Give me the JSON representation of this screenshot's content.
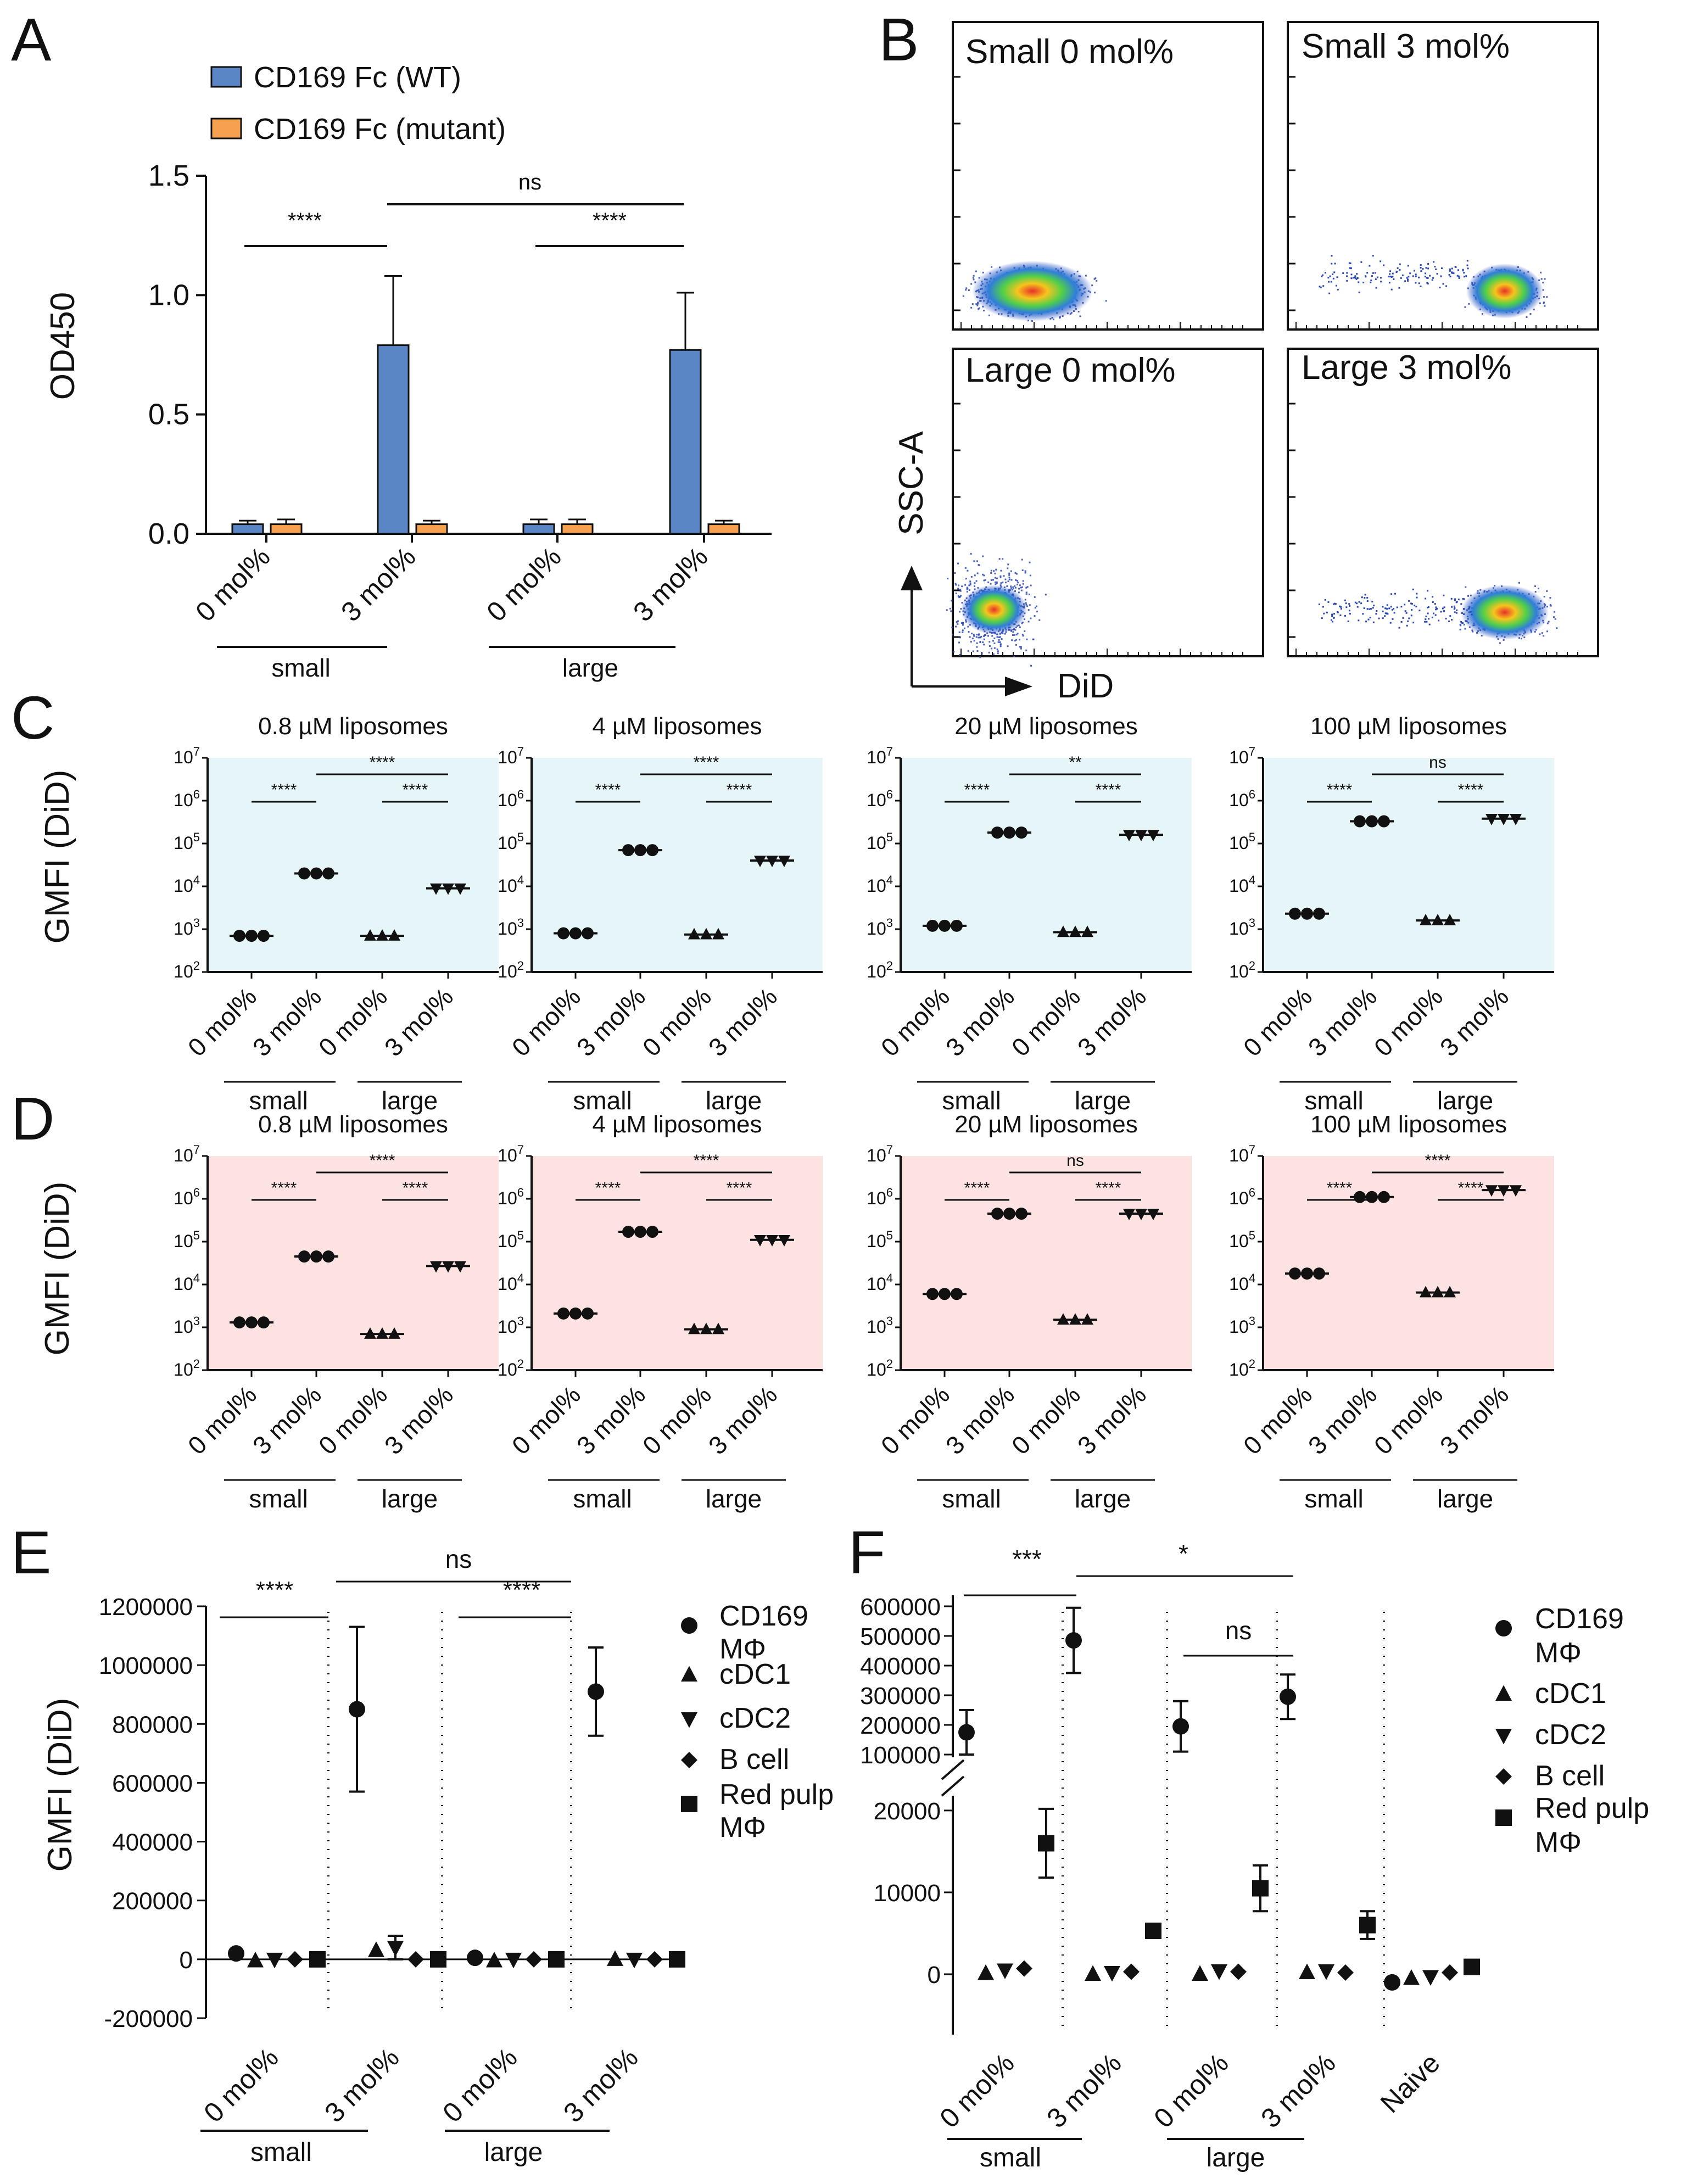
{
  "panels": {
    "A": "A",
    "B": "B",
    "C": "C",
    "D": "D",
    "E": "E",
    "F": "F"
  },
  "colors": {
    "wt": "#5b86c6",
    "mutant": "#f5a150",
    "cyan_bg": "#e6f6f8",
    "pink_bg": "#fde2e2"
  },
  "chart_data": [
    {
      "id": "A",
      "type": "bar",
      "ylabel": "OD450",
      "ylim": [
        0,
        1.5
      ],
      "yticks": [
        "0.0",
        "0.5",
        "1.0",
        "1.5"
      ],
      "categories": [
        "0 mol%",
        "3 mol%",
        "0 mol%",
        "3 mol%"
      ],
      "groups": [
        "small",
        "large"
      ],
      "series": [
        {
          "name": "CD169 Fc (WT)",
          "color": "#5b86c6",
          "values": [
            0.04,
            0.79,
            0.04,
            0.77
          ],
          "errors": [
            0.015,
            0.29,
            0.02,
            0.24
          ]
        },
        {
          "name": "CD169 Fc (mutant)",
          "color": "#f5a150",
          "values": [
            0.04,
            0.04,
            0.04,
            0.04
          ],
          "errors": [
            0.02,
            0.015,
            0.02,
            0.015
          ]
        }
      ],
      "comparisons": [
        {
          "label": "****"
        },
        {
          "label": "ns"
        },
        {
          "label": "****"
        }
      ]
    },
    {
      "id": "B",
      "type": "scatter",
      "xlabel": "DiD",
      "ylabel": "SSC-A",
      "plots": [
        "Small 0 mol%",
        "Small 3 mol%",
        "Large 0 mol%",
        "Large 3 mol%"
      ]
    },
    {
      "id": "C",
      "type": "scatter",
      "ylabel": "GMFI (DiD)",
      "yscale": "log",
      "ylim": [
        100,
        10000000
      ],
      "ytick_base": "10",
      "ytick_exps": [
        "2",
        "3",
        "4",
        "5",
        "6",
        "7"
      ],
      "categories": [
        "0 mol%",
        "3 mol%",
        "0 mol%",
        "3 mol%"
      ],
      "groups": [
        "small",
        "large"
      ],
      "subplots": [
        {
          "title": "0.8 µM liposomes",
          "values": [
            700,
            20000,
            700,
            9000
          ],
          "sig": [
            "****",
            "****",
            "****"
          ]
        },
        {
          "title": "4 µM liposomes",
          "values": [
            800,
            70000,
            750,
            40000
          ],
          "sig": [
            "****",
            "****",
            "****"
          ]
        },
        {
          "title": "20 µM liposomes",
          "values": [
            1200,
            180000,
            850,
            160000
          ],
          "sig": [
            "****",
            "**",
            "****"
          ]
        },
        {
          "title": "100 µM liposomes",
          "values": [
            2300,
            330000,
            1600,
            380000
          ],
          "sig": [
            "****",
            "ns",
            "****"
          ]
        }
      ]
    },
    {
      "id": "D",
      "type": "scatter",
      "ylabel": "GMFI (DiD)",
      "yscale": "log",
      "ylim": [
        100,
        10000000
      ],
      "ytick_base": "10",
      "ytick_exps": [
        "2",
        "3",
        "4",
        "5",
        "6",
        "7"
      ],
      "categories": [
        "0 mol%",
        "3 mol%",
        "0 mol%",
        "3 mol%"
      ],
      "groups": [
        "small",
        "large"
      ],
      "subplots": [
        {
          "title": "0.8 µM liposomes",
          "values": [
            1300,
            45000,
            700,
            27000
          ],
          "sig": [
            "****",
            "****",
            "****"
          ]
        },
        {
          "title": "4 µM liposomes",
          "values": [
            2100,
            170000,
            900,
            110000
          ],
          "sig": [
            "****",
            "****",
            "****"
          ]
        },
        {
          "title": "20 µM liposomes",
          "values": [
            6000,
            450000,
            1500,
            450000
          ],
          "sig": [
            "****",
            "ns",
            "****"
          ]
        },
        {
          "title": "100 µM liposomes",
          "values": [
            18000,
            1100000,
            6500,
            1600000
          ],
          "sig": [
            "****",
            "****",
            "****"
          ]
        }
      ]
    },
    {
      "id": "E",
      "type": "scatter",
      "ylabel": "GMFI (DiD)",
      "ylim": [
        -200000,
        1200000
      ],
      "yticks": [
        "-200000",
        "0",
        "200000",
        "400000",
        "600000",
        "800000",
        "1000000",
        "1200000"
      ],
      "categories": [
        "0 mol%",
        "3 mol%",
        "0 mol%",
        "3 mol%"
      ],
      "groups": [
        "small",
        "large"
      ],
      "legend": [
        "CD169 MΦ",
        "cDC1",
        "cDC2",
        "B cell",
        "Red pulp MΦ"
      ],
      "series": [
        {
          "name": "CD169 MΦ",
          "values": [
            20000,
            850000,
            5000,
            910000
          ],
          "errors": [
            0,
            280000,
            0,
            150000
          ]
        },
        {
          "name": "cDC1",
          "values": [
            -5000,
            30000,
            -5000,
            0
          ],
          "errors": [
            0,
            0,
            0,
            0
          ]
        },
        {
          "name": "cDC2",
          "values": [
            0,
            40000,
            0,
            0
          ],
          "errors": [
            0,
            40000,
            0,
            0
          ]
        },
        {
          "name": "B cell",
          "values": [
            0,
            0,
            0,
            0
          ],
          "errors": [
            0,
            0,
            0,
            0
          ]
        },
        {
          "name": "Red pulp MΦ",
          "values": [
            0,
            0,
            0,
            0
          ],
          "errors": [
            0,
            0,
            0,
            0
          ]
        }
      ],
      "sig": [
        "****",
        "ns",
        "****"
      ]
    },
    {
      "id": "F",
      "type": "scatter",
      "ylabel": "",
      "yticks_lower": [
        "0",
        "10000",
        "20000"
      ],
      "yticks_upper": [
        "100000",
        "200000",
        "300000",
        "400000",
        "500000",
        "600000"
      ],
      "categories": [
        "0 mol%",
        "3 mol%",
        "0 mol%",
        "3 mol%",
        "Naive"
      ],
      "groups": [
        "small",
        "large"
      ],
      "legend": [
        "CD169 MΦ",
        "cDC1",
        "cDC2",
        "B cell",
        "Red pulp MΦ"
      ],
      "series": [
        {
          "name": "CD169 MΦ",
          "values": [
            175000,
            485000,
            195000,
            295000,
            -1000
          ],
          "errors": [
            75000,
            110000,
            85000,
            75000,
            0
          ]
        },
        {
          "name": "cDC1",
          "values": [
            100,
            0,
            0,
            200,
            -500
          ],
          "errors": [
            0,
            0,
            0,
            0,
            0
          ]
        },
        {
          "name": "cDC2",
          "values": [
            500,
            200,
            400,
            400,
            -300
          ],
          "errors": [
            0,
            0,
            0,
            0,
            0
          ]
        },
        {
          "name": "B cell",
          "values": [
            700,
            300,
            300,
            200,
            200
          ],
          "errors": [
            0,
            0,
            0,
            0,
            0
          ]
        },
        {
          "name": "Red pulp MΦ",
          "values": [
            16000,
            5300,
            10500,
            6000,
            900
          ],
          "errors": [
            4200,
            0,
            2800,
            1700,
            0
          ]
        }
      ],
      "sig": [
        "***",
        "*",
        "ns"
      ]
    }
  ]
}
